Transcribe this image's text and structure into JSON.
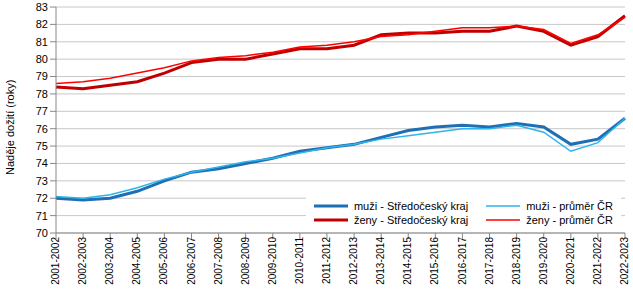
{
  "chart_data": {
    "type": "line",
    "y_label": "Naděje dožití (roky)",
    "categories": [
      "2001-2002",
      "2002-2003",
      "2003-2004",
      "2004-2005",
      "2005-2006",
      "2006-2007",
      "2007-2008",
      "2008-2009",
      "2009-2010",
      "2010-2011",
      "2011-2012",
      "2012-2013",
      "2013-2014",
      "2014-2015",
      "2015-2016",
      "2016-2017",
      "2017-2018",
      "2018-2019",
      "2019-2020",
      "2020-2021",
      "2021-2022",
      "2022-2023"
    ],
    "series": [
      {
        "name": "muži - Středočeský kraj",
        "color": "#1f6fb4",
        "line_style": "thick",
        "values": [
          72.0,
          71.9,
          72.0,
          72.4,
          73.0,
          73.5,
          73.7,
          74.0,
          74.3,
          74.7,
          74.9,
          75.1,
          75.5,
          75.9,
          76.1,
          76.2,
          76.1,
          76.3,
          76.1,
          75.1,
          75.4,
          76.6
        ]
      },
      {
        "name": "muži - průměr ČR",
        "color": "#2eb4e8",
        "line_style": "thin",
        "values": [
          72.1,
          72.0,
          72.2,
          72.6,
          73.1,
          73.5,
          73.8,
          74.1,
          74.3,
          74.6,
          74.9,
          75.1,
          75.4,
          75.6,
          75.8,
          76.0,
          76.0,
          76.2,
          75.8,
          74.7,
          75.2,
          76.6
        ]
      },
      {
        "name": "ženy - Středočeský kraj",
        "color": "#c00000",
        "line_style": "thick",
        "values": [
          78.4,
          78.3,
          78.5,
          78.7,
          79.2,
          79.8,
          80.0,
          80.0,
          80.3,
          80.6,
          80.6,
          80.8,
          81.4,
          81.5,
          81.5,
          81.6,
          81.6,
          81.9,
          81.6,
          80.8,
          81.3,
          82.5
        ]
      },
      {
        "name": "ženy - průměr ČR",
        "color": "#ff0000",
        "line_style": "thin",
        "values": [
          78.6,
          78.7,
          78.9,
          79.2,
          79.5,
          79.9,
          80.1,
          80.2,
          80.4,
          80.7,
          80.8,
          81.0,
          81.3,
          81.4,
          81.6,
          81.8,
          81.8,
          81.9,
          81.7,
          80.9,
          81.4,
          82.4
        ]
      }
    ],
    "ylim": [
      70,
      83
    ],
    "yticks": [
      70,
      71,
      72,
      73,
      74,
      75,
      76,
      77,
      78,
      79,
      80,
      81,
      82,
      83
    ],
    "grid": true,
    "legend": "lower right"
  }
}
